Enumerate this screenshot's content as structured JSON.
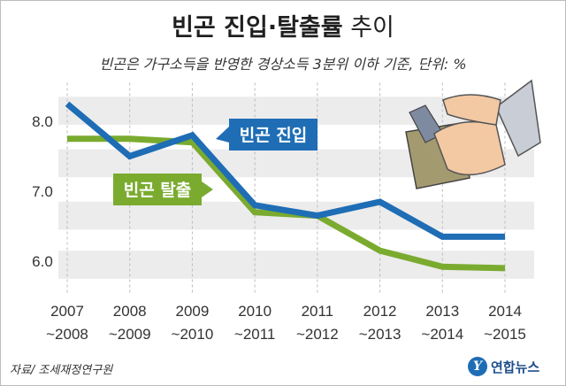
{
  "title_bold": "빈곤 진입·탈출률",
  "title_light": "추이",
  "subtitle": "빈곤은 가구소득을 반영한 경상소득 3분위 이하 기준, 단위: %",
  "source": "자료/ 조세재정연구원",
  "logo": {
    "mark": "Y",
    "text": "연합뉴스"
  },
  "colors": {
    "entry": "#1e6db5",
    "exit": "#7aab2f",
    "band": "#ececec",
    "axis_text": "#333333"
  },
  "chart_data": {
    "type": "line",
    "title": "빈곤 진입·탈출률 추이",
    "ylim": [
      5.9,
      8.55
    ],
    "y_ticks": [
      {
        "value": 6.0,
        "label": "6.0"
      },
      {
        "value": 7.0,
        "label": "7.0"
      },
      {
        "value": 8.0,
        "label": "8.0"
      }
    ],
    "categories": [
      [
        "2007",
        "~2008"
      ],
      [
        "2008",
        "~2009"
      ],
      [
        "2009",
        "~2010"
      ],
      [
        "2010",
        "~2011"
      ],
      [
        "2011",
        "~2012"
      ],
      [
        "2012",
        "~2013"
      ],
      [
        "2013",
        "~2014"
      ],
      [
        "2014",
        "~2015"
      ]
    ],
    "series": [
      {
        "name": "빈곤 진입",
        "values": [
          8.25,
          7.5,
          7.8,
          6.8,
          6.65,
          6.85,
          6.35,
          6.35
        ]
      },
      {
        "name": "빈곤 탈출",
        "values": [
          7.75,
          7.75,
          7.7,
          6.7,
          6.65,
          6.15,
          5.92,
          5.9
        ]
      }
    ],
    "gridlines": true,
    "legend": "inline labels"
  }
}
